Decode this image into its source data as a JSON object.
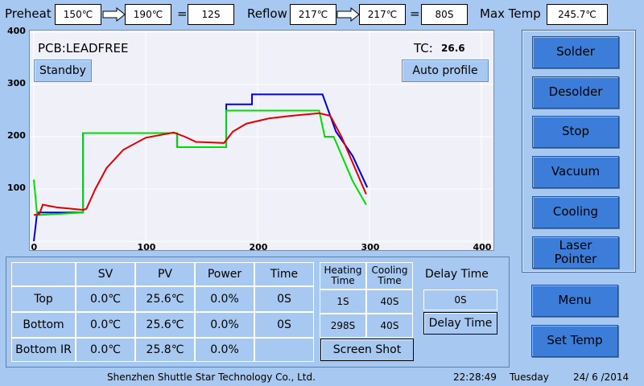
{
  "header": {
    "preheat_label": "Preheat",
    "preheat_start": "150℃",
    "preheat_end": "190℃",
    "eq": "=",
    "preheat_time": "12S",
    "reflow_label": "Reflow",
    "reflow_start": "217℃",
    "reflow_end": "217℃",
    "reflow_time": "80S",
    "max_temp_label": "Max Temp",
    "max_temp": "245.7℃"
  },
  "chart": {
    "pcb_label": "PCB:LEADFREE",
    "tc_label": "TC:",
    "tc_value": "26.6",
    "standby_btn": "Standby",
    "auto_profile_btn": "Auto profile"
  },
  "chart_data": {
    "type": "line",
    "xlim": [
      0,
      400
    ],
    "ylim": [
      0,
      400
    ],
    "x_ticks": [
      "0",
      "100",
      "200",
      "300",
      "400"
    ],
    "y_ticks": [
      "100",
      "200",
      "300",
      "400"
    ],
    "grid": true,
    "series": [
      {
        "color": "#0000dd",
        "points": [
          [
            0,
            0
          ],
          [
            3,
            55
          ],
          [
            44,
            55
          ],
          [
            44,
            207
          ],
          [
            125,
            207
          ],
          [
            128,
            207
          ],
          [
            128,
            180
          ],
          [
            172,
            180
          ],
          [
            172,
            262
          ],
          [
            195,
            262
          ],
          [
            195,
            281
          ],
          [
            258,
            281
          ],
          [
            270,
            210
          ],
          [
            285,
            163
          ],
          [
            298,
            103
          ]
        ]
      },
      {
        "color": "#00dd00",
        "points": [
          [
            0,
            118
          ],
          [
            3,
            50
          ],
          [
            44,
            55
          ],
          [
            44,
            207
          ],
          [
            125,
            207
          ],
          [
            128,
            207
          ],
          [
            128,
            180
          ],
          [
            172,
            180
          ],
          [
            172,
            250
          ],
          [
            255,
            250
          ],
          [
            260,
            200
          ],
          [
            268,
            200
          ],
          [
            285,
            115
          ],
          [
            297,
            70
          ]
        ]
      },
      {
        "color": "#e00000",
        "points": [
          [
            0,
            50
          ],
          [
            5,
            52
          ],
          [
            8,
            70
          ],
          [
            20,
            65
          ],
          [
            44,
            60
          ],
          [
            47,
            62
          ],
          [
            55,
            100
          ],
          [
            65,
            140
          ],
          [
            80,
            175
          ],
          [
            100,
            198
          ],
          [
            125,
            208
          ],
          [
            135,
            200
          ],
          [
            145,
            190
          ],
          [
            170,
            188
          ],
          [
            178,
            210
          ],
          [
            190,
            225
          ],
          [
            210,
            235
          ],
          [
            230,
            240
          ],
          [
            255,
            245
          ],
          [
            265,
            240
          ],
          [
            275,
            200
          ],
          [
            285,
            150
          ],
          [
            297,
            90
          ]
        ]
      }
    ]
  },
  "right_panel": {
    "solder": "Solder",
    "desolder": "Desolder",
    "stop": "Stop",
    "vacuum": "Vacuum",
    "cooling": "Cooling",
    "laser_line1": "Laser",
    "laser_line2": "Pointer",
    "menu": "Menu",
    "set_temp": "Set Temp"
  },
  "table": {
    "headers": [
      "SV",
      "PV",
      "Power",
      "Time"
    ],
    "rows": [
      {
        "label": "Top",
        "sv": "0.0℃",
        "pv": "25.6℃",
        "power": "0.0%",
        "time": "0S"
      },
      {
        "label": "Bottom",
        "sv": "0.0℃",
        "pv": "25.6℃",
        "power": "0.0%",
        "time": "0S"
      },
      {
        "label": "Bottom IR",
        "sv": "0.0℃",
        "pv": "25.8℃",
        "power": "0.0%",
        "time": ""
      }
    ],
    "heating_line1": "Heating",
    "heating_line2": "Time",
    "cooling_line1": "Cooling",
    "cooling_line2": "Time",
    "top_heating": "1S",
    "top_cooling": "40S",
    "bottom_heating": "298S",
    "bottom_cooling": "40S",
    "screen_shot": "Screen Shot",
    "delay_time_label": "Delay Time",
    "delay_value": "0S",
    "delay_time_btn": "Delay Time"
  },
  "footer": {
    "company": "Shenzhen Shuttle Star Technology Co., Ltd.",
    "time": "22:28:49",
    "day": "Tuesday",
    "date": "24/ 6 /2014"
  }
}
